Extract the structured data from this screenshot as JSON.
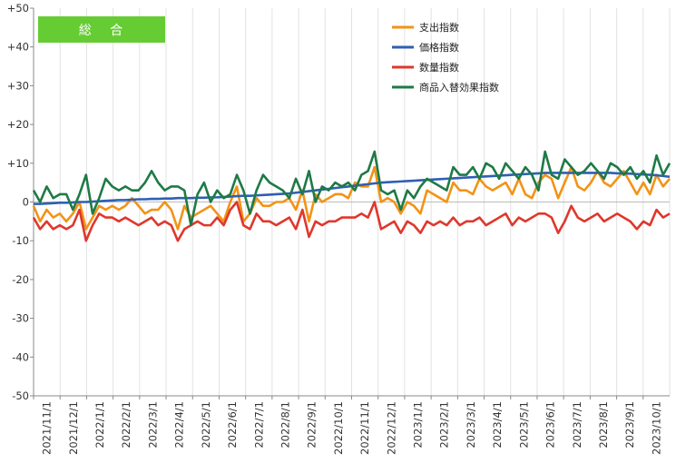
{
  "chart_data": {
    "type": "line",
    "title": "総 合",
    "xlabel": "",
    "ylabel": "",
    "ylim": [
      -50,
      50
    ],
    "y_ticks": [
      "+50",
      "+40",
      "+30",
      "+20",
      "+10",
      "0",
      "-10",
      "-20",
      "-30",
      "-40",
      "-50"
    ],
    "x_tick_labels": [
      "2021/11/1",
      "2021/12/1",
      "2022/1/1",
      "2022/2/1",
      "2022/3/1",
      "2022/4/1",
      "2022/5/1",
      "2022/6/1",
      "2022/7/1",
      "2022/8/1",
      "2022/9/1",
      "2022/10/1",
      "2022/11/1",
      "2022/12/1",
      "2023/1/1",
      "2023/2/1",
      "2023/3/1",
      "2023/4/1",
      "2023/5/1",
      "2023/6/1",
      "2023/7/1",
      "2023/8/1",
      "2023/9/1",
      "2023/10/1"
    ],
    "grid": "vertical",
    "legend_position": "top-right",
    "series": [
      {
        "name": "支出指数",
        "color": "#F39314",
        "values": [
          -1,
          -5,
          -2,
          -4,
          -3,
          -5,
          -3,
          0,
          -7,
          -4,
          -1,
          -2,
          -1,
          -2,
          -1,
          1,
          -1,
          -3,
          -2,
          -2,
          0,
          -2,
          -7,
          -1,
          -4,
          -3,
          -2,
          -1,
          -3,
          -5,
          0,
          4,
          -5,
          -3,
          1,
          -1,
          -1,
          0,
          0,
          1,
          -2,
          3,
          -5,
          2,
          0,
          1,
          2,
          2,
          1,
          5,
          4,
          4,
          9,
          0,
          1,
          0,
          -3,
          0,
          -1,
          -3,
          3,
          2,
          1,
          0,
          5,
          3,
          3,
          2,
          6,
          4,
          3,
          4,
          5,
          2,
          6,
          2,
          1,
          5,
          7,
          6,
          1,
          5,
          9,
          4,
          3,
          5,
          8,
          5,
          4,
          6,
          8,
          5,
          2,
          5,
          2,
          7,
          4,
          6
        ]
      },
      {
        "name": "価格指数",
        "color": "#2F5FB3",
        "values": [
          -0.5,
          -0.5,
          -0.4,
          -0.3,
          -0.2,
          -0.2,
          -0.1,
          0,
          0,
          0.1,
          0.2,
          0.3,
          0.4,
          0.5,
          0.5,
          0.6,
          0.7,
          0.7,
          0.8,
          0.8,
          0.9,
          0.9,
          1,
          1,
          1,
          1.1,
          1.1,
          1.2,
          1.2,
          1.3,
          1.4,
          1.5,
          1.6,
          1.6,
          1.7,
          1.8,
          1.9,
          2,
          2.1,
          2.2,
          2.4,
          2.6,
          2.8,
          3,
          3.2,
          3.4,
          3.6,
          3.8,
          4,
          4.2,
          4.4,
          4.6,
          4.8,
          5,
          5.1,
          5.2,
          5.3,
          5.4,
          5.5,
          5.6,
          5.7,
          5.8,
          5.9,
          6,
          6.1,
          6.2,
          6.3,
          6.4,
          6.5,
          6.6,
          6.7,
          6.8,
          6.9,
          7,
          7.1,
          7.2,
          7.3,
          7.4,
          7.5,
          7.5,
          7.5,
          7.5,
          7.5,
          7.5,
          7.5,
          7.5,
          7.5,
          7.5,
          7.5,
          7.4,
          7.4,
          7.3,
          7.2,
          7.1,
          7,
          6.9,
          6.7,
          6.5
        ]
      },
      {
        "name": "数量指数",
        "color": "#E0372C",
        "values": [
          -4,
          -7,
          -5,
          -7,
          -6,
          -7,
          -6,
          -2,
          -10,
          -6,
          -3,
          -4,
          -4,
          -5,
          -4,
          -5,
          -6,
          -5,
          -4,
          -6,
          -5,
          -6,
          -10,
          -7,
          -6,
          -5,
          -6,
          -6,
          -4,
          -6,
          -2,
          0,
          -6,
          -7,
          -3,
          -5,
          -5,
          -6,
          -5,
          -4,
          -7,
          -2,
          -9,
          -5,
          -6,
          -5,
          -5,
          -4,
          -4,
          -4,
          -3,
          -4,
          0,
          -7,
          -6,
          -5,
          -8,
          -5,
          -6,
          -8,
          -5,
          -6,
          -5,
          -6,
          -4,
          -6,
          -5,
          -5,
          -4,
          -6,
          -5,
          -4,
          -3,
          -6,
          -4,
          -5,
          -4,
          -3,
          -3,
          -4,
          -8,
          -5,
          -1,
          -4,
          -5,
          -4,
          -3,
          -5,
          -4,
          -3,
          -4,
          -5,
          -7,
          -5,
          -6,
          -2,
          -4,
          -3
        ]
      },
      {
        "name": "商品入替効果指数",
        "color": "#1E7A46",
        "values": [
          3,
          0,
          4,
          1,
          2,
          2,
          -2,
          2,
          7,
          -3,
          1,
          6,
          4,
          3,
          4,
          3,
          3,
          5,
          8,
          5,
          3,
          4,
          4,
          3,
          -6,
          2,
          5,
          0,
          3,
          1,
          2,
          7,
          3,
          -3,
          3,
          7,
          5,
          4,
          3,
          1,
          6,
          2,
          8,
          0,
          4,
          3,
          5,
          4,
          5,
          3,
          7,
          8,
          13,
          3,
          2,
          3,
          -2,
          3,
          1,
          4,
          6,
          5,
          4,
          3,
          9,
          7,
          7,
          9,
          6,
          10,
          9,
          6,
          10,
          8,
          6,
          9,
          7,
          3,
          13,
          7,
          6,
          11,
          9,
          7,
          8,
          10,
          8,
          6,
          10,
          9,
          7,
          9,
          6,
          8,
          5,
          12,
          7,
          10
        ]
      }
    ]
  }
}
